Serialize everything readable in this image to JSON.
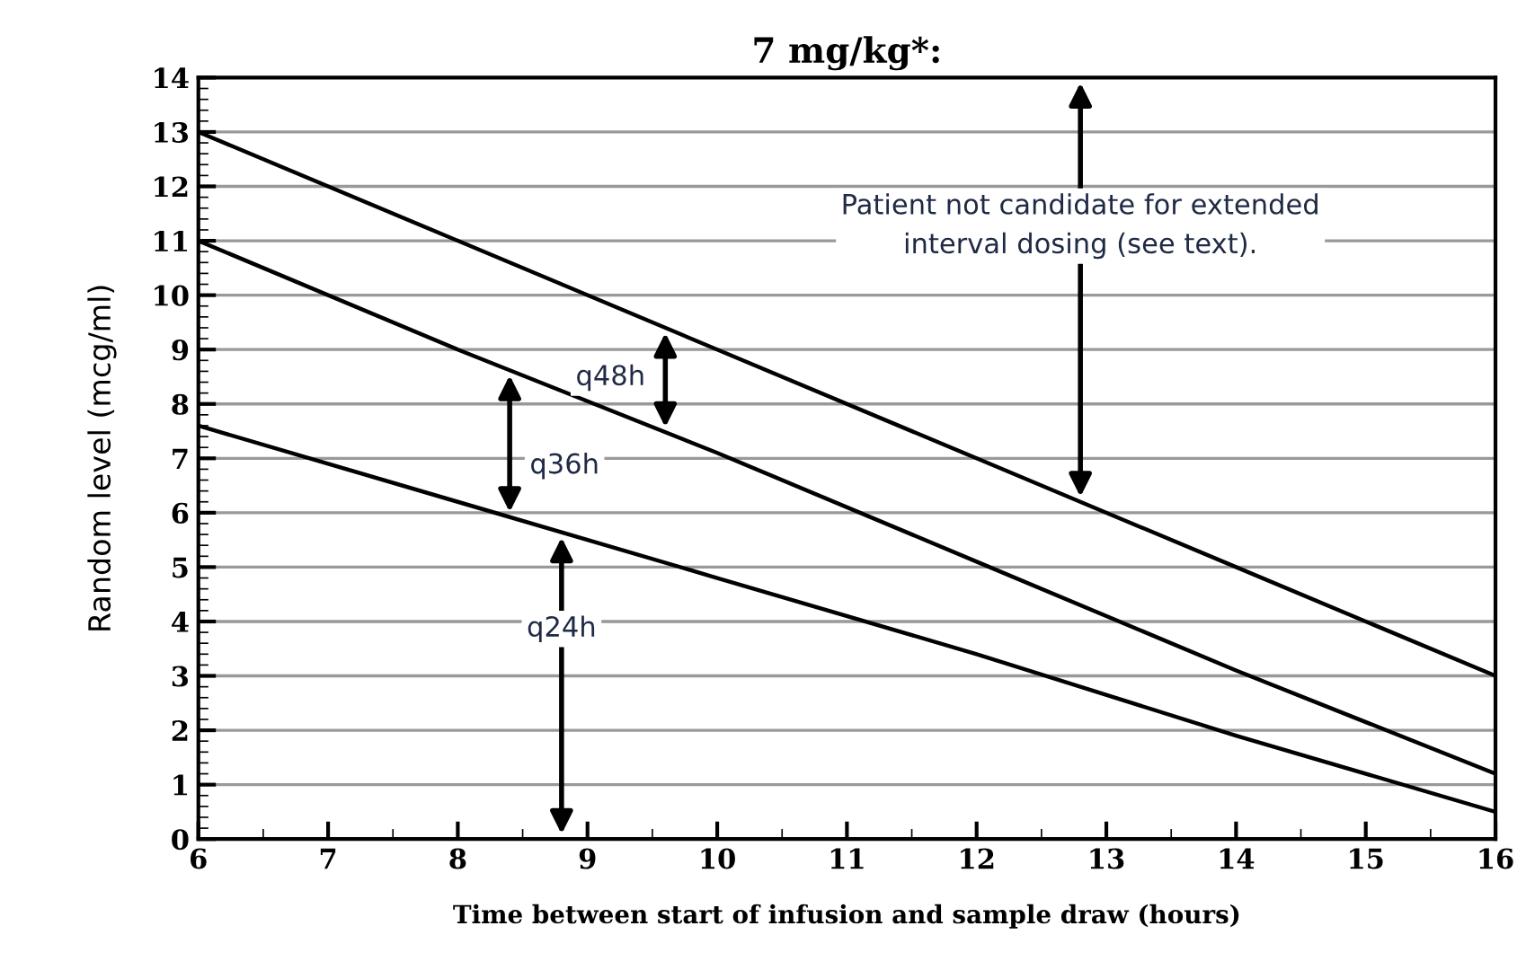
{
  "chart_data": {
    "type": "line",
    "title": "7 mg/kg*:",
    "xlabel": "Time between start of infusion and sample draw (hours)",
    "ylabel": "Random level (mcg/ml)",
    "x": [
      6,
      8,
      10,
      12,
      14,
      16
    ],
    "series": [
      {
        "color": "#000000",
        "values": [
          13,
          11,
          9,
          7,
          5,
          3
        ]
      },
      {
        "color": "#000000",
        "values": [
          11,
          9,
          7.1,
          5.1,
          3.1,
          1.2
        ]
      },
      {
        "color": "#000000",
        "values": [
          7.6,
          6.2,
          4.8,
          3.4,
          1.9,
          0.5
        ]
      }
    ],
    "xlim": [
      6,
      16
    ],
    "xticks": [
      6,
      7,
      8,
      9,
      10,
      11,
      12,
      13,
      14,
      15,
      16
    ],
    "ylim": [
      0,
      14
    ],
    "yticks": [
      0,
      1,
      2,
      3,
      4,
      5,
      6,
      7,
      8,
      9,
      10,
      11,
      12,
      13,
      14
    ],
    "grid": "y",
    "marker": "none",
    "line_style": "solid",
    "annotations": [
      "q48h",
      "q36h",
      "q24h",
      "Patient not candidate for extended\ninterval dosing (see text)."
    ]
  }
}
